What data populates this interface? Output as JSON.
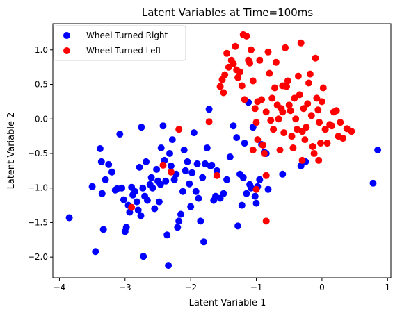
{
  "chart_data": {
    "type": "scatter",
    "title": "Latent Variables at Time=100ms",
    "xlabel": "Latent Variable 1",
    "ylabel": "Latent Variable 2",
    "xlim": [
      -4.1,
      1.05
    ],
    "ylim": [
      -2.3,
      1.38
    ],
    "x_ticks": [
      -4,
      -3,
      -2,
      -1,
      0,
      1
    ],
    "x_tick_labels": [
      "−4",
      "−3",
      "−2",
      "−1",
      "0",
      "1"
    ],
    "y_ticks": [
      -2.0,
      -1.5,
      -1.0,
      -0.5,
      0.0,
      0.5,
      1.0
    ],
    "y_tick_labels": [
      "−2.0",
      "−1.5",
      "−1.0",
      "−0.5",
      "0.0",
      "0.5",
      "1.0"
    ],
    "grid": false,
    "legend_position": "top-left",
    "series": [
      {
        "name": "Wheel Turned Right",
        "color": "#0000ff",
        "points": [
          [
            -3.85,
            -1.43
          ],
          [
            -3.5,
            -0.98
          ],
          [
            -3.45,
            -1.92
          ],
          [
            -3.38,
            -0.43
          ],
          [
            -3.36,
            -0.62
          ],
          [
            -3.35,
            -1.08
          ],
          [
            -3.33,
            -1.6
          ],
          [
            -3.3,
            -0.88
          ],
          [
            -3.25,
            -0.66
          ],
          [
            -3.2,
            -0.77
          ],
          [
            -3.15,
            -1.03
          ],
          [
            -3.12,
            -1.01
          ],
          [
            -3.08,
            -0.22
          ],
          [
            -3.05,
            -1.0
          ],
          [
            -3.02,
            -1.17
          ],
          [
            -3.0,
            -1.63
          ],
          [
            -2.98,
            -1.57
          ],
          [
            -2.95,
            -1.25
          ],
          [
            -2.93,
            -1.35
          ],
          [
            -2.9,
            -0.99
          ],
          [
            -2.88,
            -1.1
          ],
          [
            -2.85,
            -1.05
          ],
          [
            -2.82,
            -1.2
          ],
          [
            -2.8,
            -1.32
          ],
          [
            -2.78,
            -0.7
          ],
          [
            -2.76,
            -1.4
          ],
          [
            -2.75,
            -0.12
          ],
          [
            -2.73,
            -1.0
          ],
          [
            -2.72,
            -1.99
          ],
          [
            -2.7,
            -1.12
          ],
          [
            -2.68,
            -0.62
          ],
          [
            -2.66,
            -1.18
          ],
          [
            -2.62,
            -0.95
          ],
          [
            -2.6,
            -0.85
          ],
          [
            -2.58,
            -1.0
          ],
          [
            -2.55,
            -1.3
          ],
          [
            -2.52,
            -0.73
          ],
          [
            -2.5,
            -0.9
          ],
          [
            -2.48,
            -1.2
          ],
          [
            -2.46,
            -0.95
          ],
          [
            -2.45,
            -0.42
          ],
          [
            -2.42,
            -0.1
          ],
          [
            -2.4,
            -0.6
          ],
          [
            -2.38,
            -0.9
          ],
          [
            -2.36,
            -1.68
          ],
          [
            -2.34,
            -2.12
          ],
          [
            -2.32,
            -0.5
          ],
          [
            -2.3,
            -0.68
          ],
          [
            -2.28,
            -0.3
          ],
          [
            -2.25,
            -0.88
          ],
          [
            -2.22,
            -0.8
          ],
          [
            -2.2,
            -1.57
          ],
          [
            -2.18,
            -1.48
          ],
          [
            -2.15,
            -1.38
          ],
          [
            -2.12,
            -1.05
          ],
          [
            -2.1,
            -0.45
          ],
          [
            -2.08,
            -0.75
          ],
          [
            -2.05,
            -0.62
          ],
          [
            -2.02,
            -0.94
          ],
          [
            -2.0,
            -1.27
          ],
          [
            -1.98,
            -0.78
          ],
          [
            -1.95,
            -0.2
          ],
          [
            -1.92,
            -1.05
          ],
          [
            -1.9,
            -0.65
          ],
          [
            -1.88,
            -1.15
          ],
          [
            -1.85,
            -1.48
          ],
          [
            -1.82,
            -0.85
          ],
          [
            -1.8,
            -1.78
          ],
          [
            -1.78,
            -0.65
          ],
          [
            -1.75,
            -0.42
          ],
          [
            -1.72,
            0.14
          ],
          [
            -1.7,
            -0.68
          ],
          [
            -1.68,
            -0.67
          ],
          [
            -1.65,
            -1.18
          ],
          [
            -1.62,
            -1.12
          ],
          [
            -1.6,
            -0.75
          ],
          [
            -1.55,
            -1.15
          ],
          [
            -1.5,
            -1.08
          ],
          [
            -1.45,
            -0.88
          ],
          [
            -1.4,
            -0.55
          ],
          [
            -1.35,
            -0.1
          ],
          [
            -1.3,
            -0.27
          ],
          [
            -1.28,
            -1.55
          ],
          [
            -1.25,
            -0.8
          ],
          [
            -1.22,
            -1.25
          ],
          [
            -1.2,
            -0.85
          ],
          [
            -1.18,
            -0.35
          ],
          [
            -1.15,
            -1.08
          ],
          [
            -1.12,
            0.24
          ],
          [
            -1.1,
            -0.95
          ],
          [
            -1.08,
            -1.0
          ],
          [
            -1.05,
            -0.12
          ],
          [
            -1.02,
            -1.12
          ],
          [
            -1.0,
            -1.22
          ],
          [
            -0.98,
            -0.98
          ],
          [
            -0.95,
            -0.88
          ],
          [
            -0.92,
            -0.37
          ],
          [
            -0.88,
            -0.48
          ],
          [
            -0.85,
            -0.5
          ],
          [
            -0.82,
            -1.02
          ],
          [
            -0.6,
            -0.8
          ],
          [
            -0.32,
            -0.68
          ],
          [
            -0.25,
            -0.62
          ],
          [
            0.78,
            -0.93
          ],
          [
            0.85,
            -0.45
          ]
        ]
      },
      {
        "name": "Wheel Turned Left",
        "color": "#ff0000",
        "points": [
          [
            -2.9,
            -1.28
          ],
          [
            -2.42,
            -0.67
          ],
          [
            -2.3,
            -0.77
          ],
          [
            -2.18,
            -0.15
          ],
          [
            -1.72,
            -0.04
          ],
          [
            -1.55,
            0.47
          ],
          [
            -1.52,
            0.57
          ],
          [
            -1.5,
            0.38
          ],
          [
            -1.48,
            0.64
          ],
          [
            -1.45,
            0.95
          ],
          [
            -1.42,
            0.75
          ],
          [
            -1.38,
            0.85
          ],
          [
            -1.35,
            0.8
          ],
          [
            -1.32,
            1.05
          ],
          [
            -1.3,
            0.71
          ],
          [
            -1.28,
            0.6
          ],
          [
            -1.25,
            0.68
          ],
          [
            -1.22,
            0.48
          ],
          [
            -1.2,
            1.22
          ],
          [
            -1.18,
            0.28
          ],
          [
            -1.15,
            1.2
          ],
          [
            -1.12,
            0.85
          ],
          [
            -1.1,
            0.81
          ],
          [
            -1.08,
            1.0
          ],
          [
            -1.05,
            0.55
          ],
          [
            -1.02,
            0.15
          ],
          [
            -1.0,
            -0.05
          ],
          [
            -0.98,
            0.25
          ],
          [
            -0.95,
            0.85
          ],
          [
            -0.92,
            0.28
          ],
          [
            -0.9,
            -0.38
          ],
          [
            -0.88,
            -0.5
          ],
          [
            -0.85,
            0.1
          ],
          [
            -0.82,
            0.97
          ],
          [
            -0.8,
            0.66
          ],
          [
            -0.78,
            -0.02
          ],
          [
            -0.76,
            0.3
          ],
          [
            -0.74,
            -0.15
          ],
          [
            -0.72,
            0.45
          ],
          [
            -0.7,
            0.82
          ],
          [
            -0.68,
            0.2
          ],
          [
            -0.66,
            0.0
          ],
          [
            -0.64,
            -0.45
          ],
          [
            -0.62,
            0.15
          ],
          [
            -0.6,
            0.1
          ],
          [
            -0.58,
            -0.2
          ],
          [
            -0.56,
            1.03
          ],
          [
            -0.54,
            0.47
          ],
          [
            -0.52,
            0.55
          ],
          [
            -0.5,
            0.2
          ],
          [
            -0.48,
            0.12
          ],
          [
            -0.46,
            -0.25
          ],
          [
            -0.44,
            -0.42
          ],
          [
            -0.42,
            0.3
          ],
          [
            -0.4,
            0.0
          ],
          [
            -0.38,
            -0.15
          ],
          [
            -0.36,
            0.62
          ],
          [
            -0.34,
            0.35
          ],
          [
            -0.32,
            1.1
          ],
          [
            -0.3,
            -0.18
          ],
          [
            -0.28,
            0.15
          ],
          [
            -0.26,
            -0.3
          ],
          [
            -0.24,
            -0.12
          ],
          [
            -0.22,
            0.22
          ],
          [
            -0.2,
            0.52
          ],
          [
            -0.18,
            0.65
          ],
          [
            -0.16,
            0.05
          ],
          [
            -0.14,
            -0.4
          ],
          [
            -0.12,
            -0.5
          ],
          [
            -0.1,
            0.88
          ],
          [
            -0.08,
            0.3
          ],
          [
            -0.06,
            0.13
          ],
          [
            -0.04,
            -0.05
          ],
          [
            -0.02,
            -0.35
          ],
          [
            0.0,
            0.25
          ],
          [
            0.02,
            0.45
          ],
          [
            0.05,
            -0.15
          ],
          [
            0.08,
            -0.35
          ],
          [
            0.12,
            -0.08
          ],
          [
            0.15,
            -0.1
          ],
          [
            0.18,
            0.1
          ],
          [
            0.22,
            0.12
          ],
          [
            0.25,
            -0.25
          ],
          [
            0.28,
            -0.05
          ],
          [
            0.32,
            -0.28
          ],
          [
            0.38,
            -0.14
          ],
          [
            0.45,
            -0.18
          ],
          [
            -1.6,
            -0.82
          ],
          [
            -1.0,
            -1.02
          ],
          [
            -0.85,
            -0.82
          ],
          [
            -0.85,
            -1.48
          ],
          [
            -1.05,
            -0.45
          ],
          [
            -0.98,
            -0.3
          ],
          [
            -0.6,
            0.48
          ],
          [
            -0.3,
            -0.6
          ],
          [
            -0.05,
            -0.6
          ]
        ]
      }
    ]
  }
}
